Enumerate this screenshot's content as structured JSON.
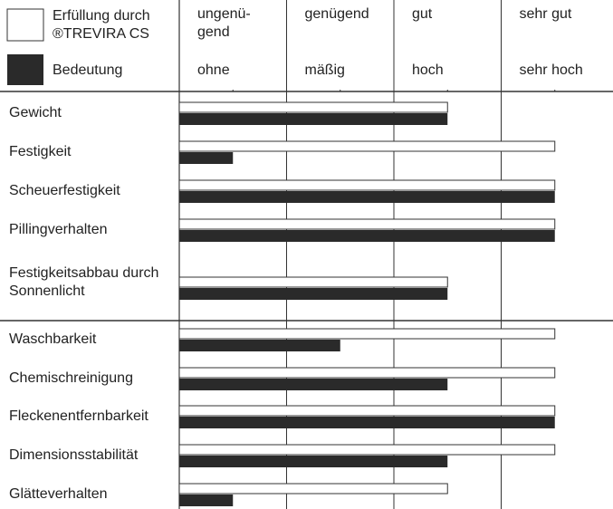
{
  "chart_data": {
    "type": "paired-bar",
    "categories": [
      "Gewicht",
      "Festigkeit",
      "Scheuerfestigkeit",
      "Pillingverhalten",
      "Festigkeitsabbau durch Sonnenlicht",
      "Waschbarkeit",
      "Chemischreinigung",
      "Fleckenentfernbarkeit",
      "Dimensionsstabilität",
      "Glätteverhalten"
    ],
    "series": [
      {
        "name": "Erfüllung durch ®TREVIRA CS",
        "color": "#ffffff",
        "values": [
          3,
          4,
          4,
          4,
          3,
          4,
          4,
          4,
          4,
          3
        ],
        "tick_labels": [
          "ungenü-gend",
          "genügend",
          "gut",
          "sehr gut"
        ]
      },
      {
        "name": "Bedeutung",
        "color": "#2a2a2a",
        "values": [
          3,
          1,
          4,
          4,
          3,
          2,
          3,
          4,
          3,
          1
        ],
        "tick_labels": [
          "ohne",
          "mäßig",
          "hoch",
          "sehr hoch"
        ]
      }
    ],
    "xlim": [
      0.5,
      4.5
    ],
    "xticks": [
      1,
      2,
      3,
      4
    ]
  }
}
